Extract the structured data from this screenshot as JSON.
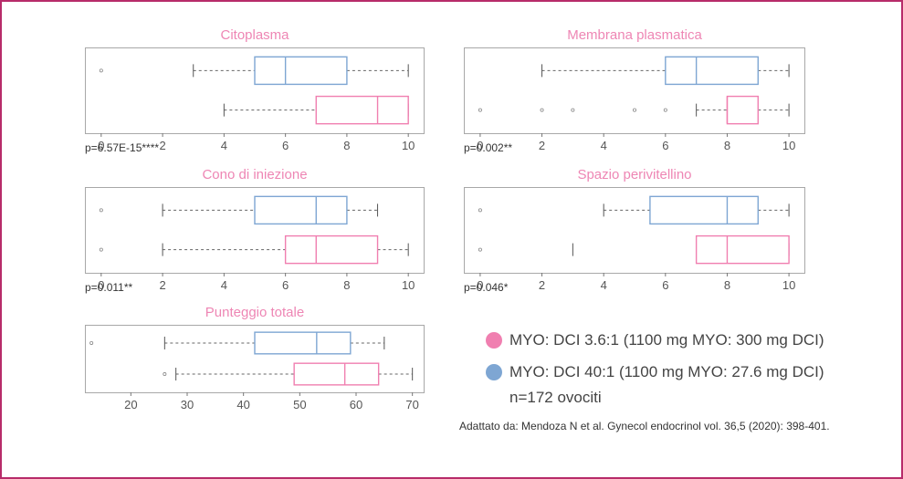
{
  "colors": {
    "pink": "#f07fb0",
    "blue": "#7ea6d3",
    "title": "#ee86b4",
    "frame": "#b72c6a"
  },
  "chart_data": [
    {
      "type": "boxplot",
      "title": "Citoplasma",
      "p_value": "p=6.57E-15****",
      "xlim": [
        -0.5,
        10.5
      ],
      "ticks": [
        0,
        2,
        4,
        6,
        8,
        10
      ],
      "tick_labels": [
        "0",
        "2",
        "4",
        "6",
        "8",
        "10"
      ],
      "series": [
        {
          "name": "MYO: DCI 40:1",
          "color": "blue",
          "whisker_low": 3,
          "q1": 5,
          "median": 6,
          "q3": 8,
          "whisker_high": 10,
          "outliers": [
            0
          ]
        },
        {
          "name": "MYO: DCI 3.6:1",
          "color": "pink",
          "whisker_low": 4,
          "q1": 7,
          "median": 9,
          "q3": 10,
          "whisker_high": 10,
          "outliers": []
        }
      ]
    },
    {
      "type": "boxplot",
      "title": "Membrana plasmatica",
      "p_value": "p=0.002**",
      "xlim": [
        -0.5,
        10.5
      ],
      "ticks": [
        0,
        2,
        4,
        6,
        8,
        10
      ],
      "tick_labels": [
        "0",
        "2",
        "4",
        "6",
        "8",
        "10"
      ],
      "series": [
        {
          "name": "MYO: DCI 40:1",
          "color": "blue",
          "whisker_low": 2,
          "q1": 6,
          "median": 7,
          "q3": 9,
          "whisker_high": 10,
          "outliers": []
        },
        {
          "name": "MYO: DCI 3.6:1",
          "color": "pink",
          "whisker_low": 7,
          "q1": 8,
          "median": 8,
          "q3": 9,
          "whisker_high": 10,
          "outliers": [
            0,
            2,
            3,
            5,
            6
          ]
        }
      ]
    },
    {
      "type": "boxplot",
      "title": "Cono di iniezione",
      "p_value": "p=0.011**",
      "xlim": [
        -0.5,
        10.5
      ],
      "ticks": [
        0,
        2,
        4,
        6,
        8,
        10
      ],
      "tick_labels": [
        "0",
        "2",
        "4",
        "6",
        "8",
        "10"
      ],
      "series": [
        {
          "name": "MYO: DCI 40:1",
          "color": "blue",
          "whisker_low": 2,
          "q1": 5,
          "median": 7,
          "q3": 8,
          "whisker_high": 9,
          "outliers": [
            0
          ]
        },
        {
          "name": "MYO: DCI 3.6:1",
          "color": "pink",
          "whisker_low": 2,
          "q1": 6,
          "median": 7,
          "q3": 9,
          "whisker_high": 10,
          "outliers": [
            0
          ]
        }
      ]
    },
    {
      "type": "boxplot",
      "title": "Spazio perivitellino",
      "p_value": "p=0.046*",
      "xlim": [
        -0.5,
        10.5
      ],
      "ticks": [
        0,
        2,
        4,
        6,
        8,
        10
      ],
      "tick_labels": [
        "0",
        "2",
        "4",
        "6",
        "8",
        "10"
      ],
      "series": [
        {
          "name": "MYO: DCI 40:1",
          "color": "blue",
          "whisker_low": 4,
          "q1": 5.5,
          "median": 8,
          "q3": 9,
          "whisker_high": 10,
          "outliers": [
            0
          ]
        },
        {
          "name": "MYO: DCI 3.6:1",
          "color": "pink",
          "whisker_low": 3,
          "q1": 7,
          "median": 8,
          "q3": 10,
          "whisker_high": 10,
          "outliers": [
            0
          ],
          "whisker_low_detached": true
        }
      ]
    },
    {
      "type": "boxplot",
      "title": "Punteggio totale",
      "p_value": "",
      "xlim": [
        12,
        72
      ],
      "ticks": [
        20,
        30,
        40,
        50,
        60,
        70
      ],
      "tick_labels": [
        "20",
        "30",
        "40",
        "50",
        "60",
        "70"
      ],
      "series": [
        {
          "name": "MYO: DCI 40:1",
          "color": "blue",
          "whisker_low": 26,
          "q1": 42,
          "median": 53,
          "q3": 59,
          "whisker_high": 65,
          "outliers": [
            13
          ]
        },
        {
          "name": "MYO: DCI 3.6:1",
          "color": "pink",
          "whisker_low": 28,
          "q1": 49,
          "median": 58,
          "q3": 64,
          "whisker_high": 70,
          "outliers": [
            26
          ]
        }
      ]
    }
  ],
  "legend": {
    "items": [
      {
        "label": "MYO: DCI 3.6:1 (1100 mg MYO: 300 mg DCI)",
        "color": "pink"
      },
      {
        "label": "MYO: DCI 40:1 (1100 mg MYO: 27.6 mg DCI)",
        "color": "blue"
      }
    ],
    "n_note": "n=172 ovociti"
  },
  "source_note": "Adattato da: Mendoza N et al.  Gynecol endocrinol vol. 36,5 (2020): 398-401."
}
